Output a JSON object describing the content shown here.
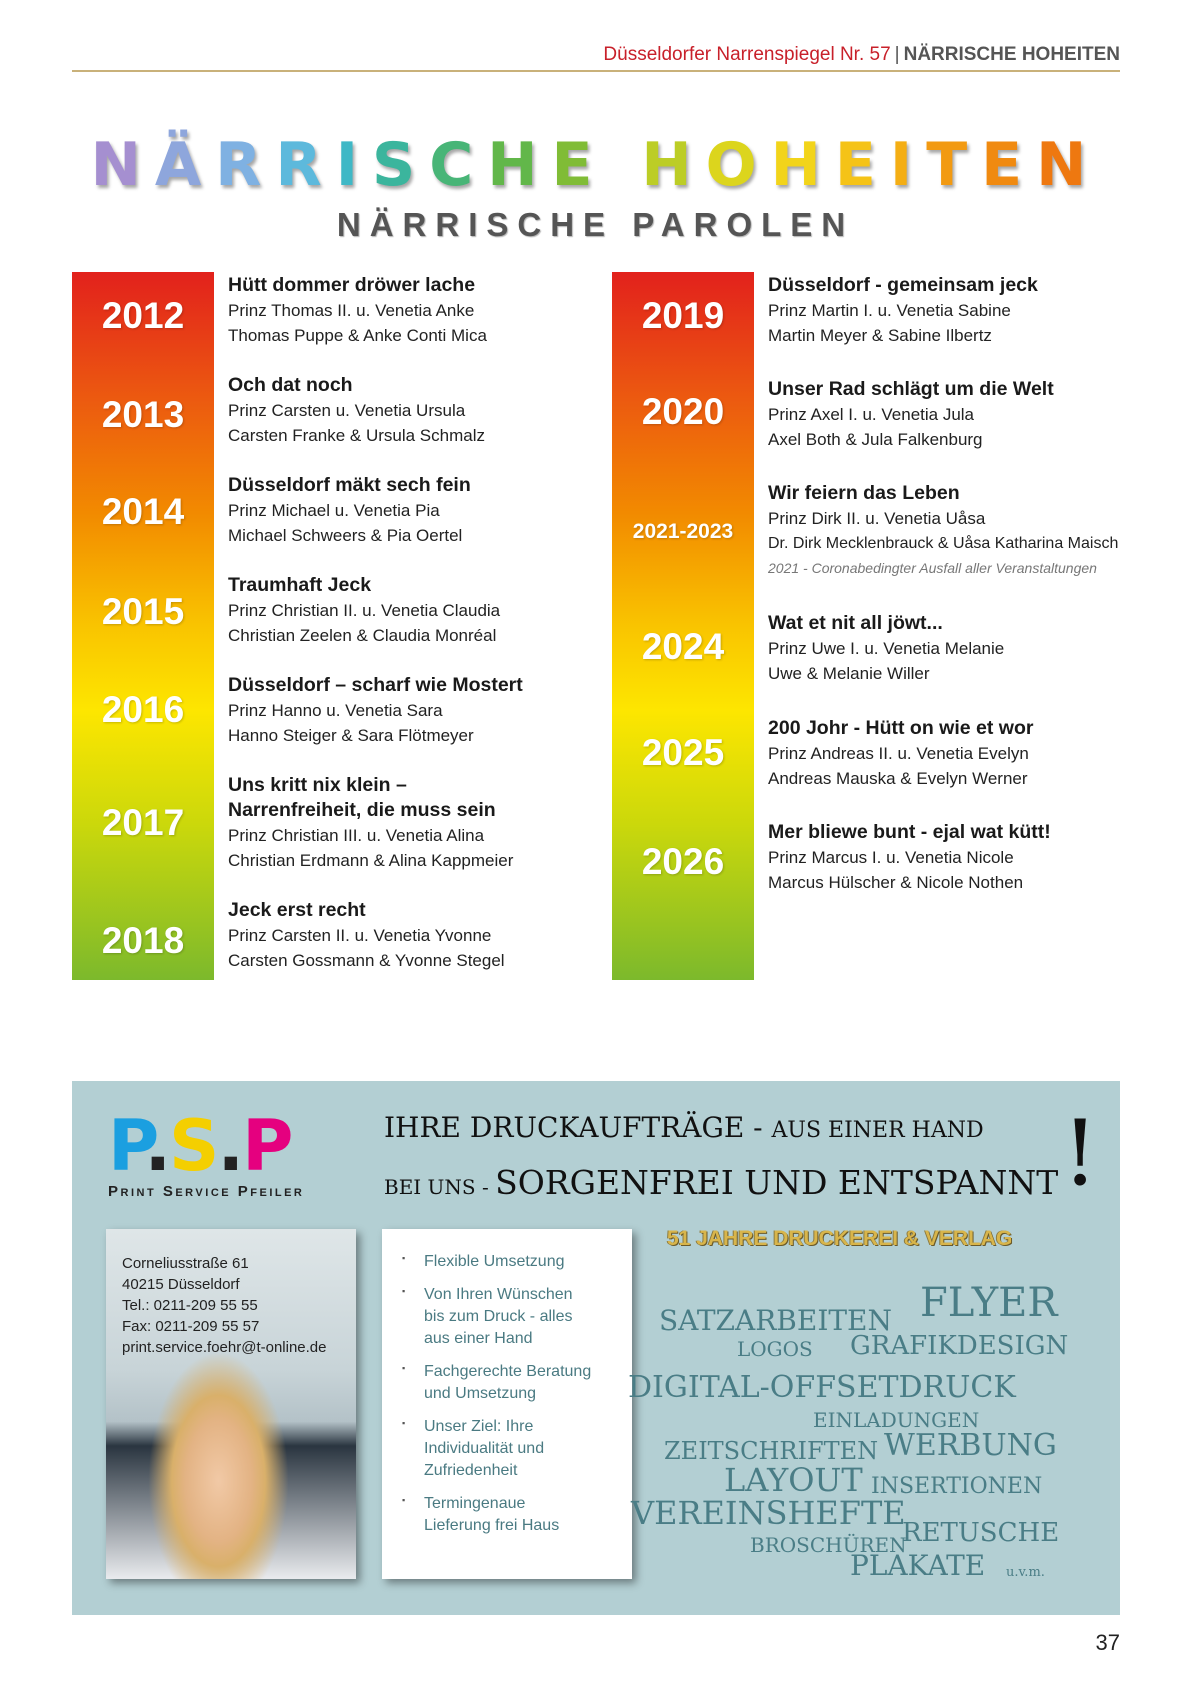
{
  "header": {
    "magazine": "Düsseldorfer Narrenspiegel Nr. 57",
    "separator": "|",
    "section": "NÄRRISCHE HOHEITEN"
  },
  "title": {
    "letters": [
      "N",
      "Ä",
      "R",
      "R",
      "I",
      "S",
      "C",
      "H",
      "E",
      " ",
      "H",
      "O",
      "H",
      "E",
      "I",
      "T",
      "E",
      "N"
    ],
    "colors": [
      "#a58fd0",
      "#8ea6dc",
      "#7fb1e2",
      "#5db9dc",
      "#3fb8c6",
      "#3bb59d",
      "#48b577",
      "#62b74a",
      "#80bc36",
      "#fff",
      "#bccd26",
      "#dcd51d",
      "#f2d41a",
      "#f5c317",
      "#f4ae14",
      "#f29a12",
      "#f08a10",
      "#ee7810"
    ],
    "text": "NÄRRISCHE HOHEITEN"
  },
  "subtitle": "NÄRRISCHE PAROLEN",
  "left": [
    {
      "year": "2012",
      "motto": "Hütt dommer dröwer lache",
      "line1": "Prinz Thomas II. u. Venetia Anke",
      "line2": "Thomas Puppe & Anke Conti Mica"
    },
    {
      "year": "2013",
      "motto": "Och dat noch",
      "line1": "Prinz Carsten u. Venetia Ursula",
      "line2": "Carsten Franke & Ursula Schmalz"
    },
    {
      "year": "2014",
      "motto": "Düsseldorf mäkt sech fein",
      "line1": "Prinz Michael u. Venetia Pia",
      "line2": "Michael Schweers & Pia Oertel"
    },
    {
      "year": "2015",
      "motto": "Traumhaft Jeck",
      "line1": "Prinz Christian II. u. Venetia Claudia",
      "line2": "Christian Zeelen & Claudia Monréal"
    },
    {
      "year": "2016",
      "motto": "Düsseldorf – scharf wie Mostert",
      "line1": "Prinz Hanno u. Venetia Sara",
      "line2": "Hanno Steiger & Sara Flötmeyer"
    },
    {
      "year": "2017",
      "motto": "Uns kritt nix klein –",
      "motto2": "Narrenfreiheit, die muss sein",
      "line1": "Prinz Christian III. u. Venetia Alina",
      "line2": "Christian Erdmann & Alina Kappmeier"
    },
    {
      "year": "2018",
      "motto": "Jeck erst recht",
      "line1": "Prinz Carsten II. u. Venetia Yvonne",
      "line2": "Carsten Gossmann & Yvonne Stegel"
    }
  ],
  "right": [
    {
      "year": "2019",
      "motto": "Düsseldorf - gemeinsam jeck",
      "line1": "Prinz Martin I. u. Venetia Sabine",
      "line2": "Martin Meyer & Sabine Ilbertz"
    },
    {
      "year": "2020",
      "motto": "Unser Rad schlägt um die Welt",
      "line1": "Prinz Axel I. u. Venetia Jula",
      "line2": "Axel Both & Jula Falkenburg"
    },
    {
      "year": "2021-2023",
      "motto": "Wir feiern das Leben",
      "line1": "Prinz Dirk II. u. Venetia Uåsa",
      "line2": "Dr. Dirk Mecklenbrauck & Uåsa Katharina Maisch",
      "note": "2021 - Coronabedingter Ausfall aller Veranstaltungen"
    },
    {
      "year": "2024",
      "motto": "Wat et nit all jöwt...",
      "line1": "Prinz Uwe I. u. Venetia Melanie",
      "line2": "Uwe & Melanie Willer"
    },
    {
      "year": "2025",
      "motto": "200 Johr - Hütt on wie et wor",
      "line1": "Prinz Andreas II. u. Venetia Evelyn",
      "line2": "Andreas Mauska & Evelyn Werner"
    },
    {
      "year": "2026",
      "motto": "Mer bliewe bunt - ejal wat kütt!",
      "line1": "Prinz Marcus I. u. Venetia Nicole",
      "line2": "Marcus Hülscher & Nicole Nothen"
    }
  ],
  "ad": {
    "logo": {
      "p1": "P",
      "dot": ".",
      "s": "S",
      "p2": "P",
      "text": "P.S.P",
      "subtitle": "Print Service Pfeiler"
    },
    "headline1a": "IHRE DRUCKAUFTRÄGE - ",
    "headline1b": "AUS EINER HAND",
    "headline2a": "BEI UNS - ",
    "headline2b": "SORGENFREI UND ENTSPANNT",
    "exclamation": "!",
    "contact": [
      "Corneliusstraße 61",
      "40215 Düsseldorf",
      "Tel.: 0211-209 55 55",
      "Fax: 0211-209 55 57",
      "print.service.foehr@t-online.de"
    ],
    "features": [
      "Flexible Umsetzung",
      "Von Ihren Wünschen bis zum Druck - alles aus einer Hand",
      "Fachgerechte Beratung und Umsetzung",
      "Unser Ziel: Ihre Individualität und Zufriedenheit",
      "Termingenaue Lieferung frei Haus"
    ],
    "years": "51 JAHRE DRUCKEREI & VERLAG",
    "words": [
      "SATZARBEITEN",
      "FLYER",
      "LOGOS",
      "GRAFIKDESIGN",
      "DIGITAL-OFFSETDRUCK",
      "EINLADUNGEN",
      "ZEITSCHRIFTEN",
      "WERBUNG",
      "LAYOUT",
      "INSERTIONEN",
      "VEREINSHEFTE",
      "BROSCHÜREN",
      "RETUSCHE",
      "PLAKATE",
      "u.v.m."
    ],
    "colors": {
      "background": "#b3cfd3",
      "text": "#4a7d86",
      "gold": "#d8b54b"
    }
  },
  "page_number": "37",
  "colors": {
    "header_red": "#c8202a",
    "rule": "#c9b17a",
    "bar_top": "#e2211c",
    "bar_mid": "#fde600",
    "bar_bottom": "#7cb92c"
  }
}
